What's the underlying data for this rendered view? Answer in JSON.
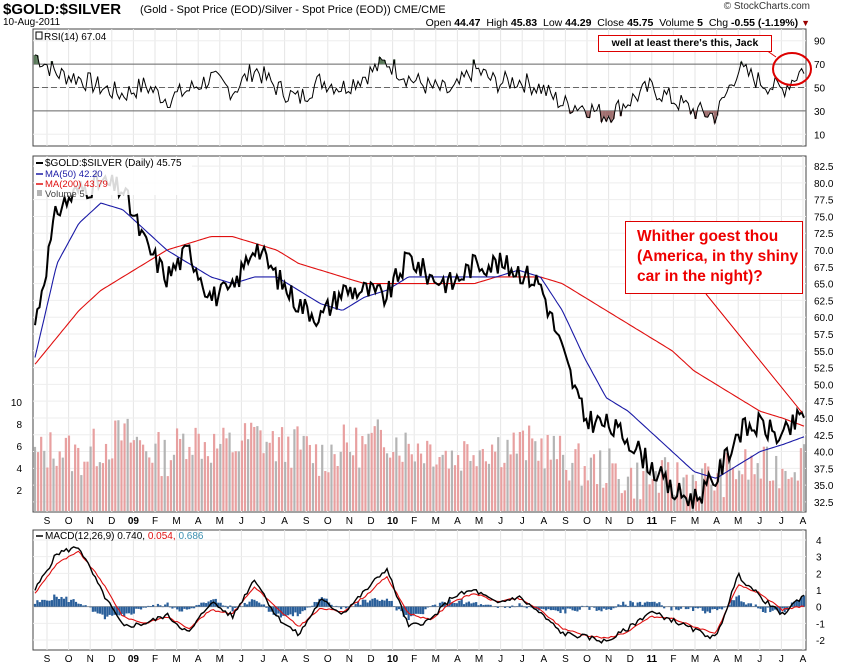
{
  "header": {
    "symbol": "$GOLD:$SILVER",
    "description": "(Gold - Spot Price (EOD)/Silver - Spot Price (EOD)) CME/CME",
    "watermark": "© StockCharts.com",
    "date": "10-Aug-2011",
    "open_label": "Open",
    "open": "44.47",
    "high_label": "High",
    "high": "45.83",
    "low_label": "Low",
    "low": "44.29",
    "close_label": "Close",
    "close": "45.75",
    "volume_label": "Volume",
    "volume": "5",
    "chg_label": "Chg",
    "chg": "-0.55 (-1.19%)"
  },
  "annotations": {
    "rsi_note": "well at least there's this, Jack",
    "price_note_line1": "Whither goest thou",
    "price_note_line2": "(America, in thy shiny",
    "price_note_line3": "car in the night)?"
  },
  "colors": {
    "price": "#000000",
    "ma50": "#1a1aa6",
    "ma200": "#e01010",
    "volume_red": "#e8a0a0",
    "volume_gray": "#b4b4b4",
    "rsi_over": "#5a7a5a",
    "rsi_under": "#a07070",
    "macd_hist": "#2a5f9a",
    "signal": "#e01010",
    "annotation": "#dd0000"
  },
  "chart_data": [
    {
      "type": "line",
      "panel": "rsi",
      "title": "RSI(14) 67.04",
      "legend": "RSI(14)",
      "last": 67.04,
      "ylim": [
        0,
        100
      ],
      "yticks": [
        10,
        30,
        50,
        70,
        90
      ],
      "reference_lines": [
        30,
        50,
        70
      ],
      "x": [
        "2008-09",
        "2008-10",
        "2008-11",
        "2008-12",
        "2009-01",
        "2009-02",
        "2009-03",
        "2009-04",
        "2009-05",
        "2009-06",
        "2009-07",
        "2009-08",
        "2009-09",
        "2009-10",
        "2009-11",
        "2009-12",
        "2010-01",
        "2010-02",
        "2010-03",
        "2010-04",
        "2010-05",
        "2010-06",
        "2010-07",
        "2010-08",
        "2010-09",
        "2010-10",
        "2010-11",
        "2010-12",
        "2011-01",
        "2011-02",
        "2011-03",
        "2011-04",
        "2011-05",
        "2011-06",
        "2011-07",
        "2011-08"
      ],
      "values": [
        78,
        62,
        58,
        50,
        44,
        52,
        40,
        48,
        58,
        47,
        66,
        50,
        40,
        56,
        50,
        60,
        72,
        58,
        50,
        46,
        66,
        54,
        56,
        50,
        36,
        34,
        26,
        38,
        50,
        40,
        30,
        26,
        66,
        55,
        48,
        67
      ]
    },
    {
      "type": "line",
      "panel": "price",
      "title": "$GOLD:$SILVER (Daily) 45.75",
      "series": [
        {
          "name": "$GOLD:$SILVER (Daily) 45.75",
          "values": [
            59,
            76,
            79,
            80,
            79,
            71,
            66,
            70,
            63,
            64,
            71,
            66,
            62,
            60,
            64,
            64,
            63,
            69,
            66,
            65,
            68,
            68,
            67,
            65,
            55,
            45,
            44,
            42,
            38,
            34,
            33,
            36,
            43,
            44,
            42,
            45.75
          ]
        },
        {
          "name": "MA(50) 42.20",
          "values": [
            54,
            68,
            74,
            77,
            76,
            73,
            70,
            68,
            66,
            65,
            66,
            66,
            64,
            62,
            61,
            63,
            64,
            66,
            66,
            66,
            66,
            66,
            67,
            66,
            61,
            54,
            48,
            46,
            43,
            40,
            37,
            36,
            38,
            40,
            41,
            42.2
          ]
        },
        {
          "name": "MA(200) 43.79",
          "values": [
            53,
            57,
            61,
            64,
            66,
            68,
            70,
            71,
            72,
            72,
            71,
            70,
            68,
            67,
            66,
            65,
            65,
            65,
            65,
            65,
            65,
            66,
            66,
            66,
            65,
            63,
            61,
            59,
            57,
            55,
            52,
            50,
            48,
            46,
            45,
            43.79
          ]
        }
      ],
      "x": [
        "2008-09",
        "2008-10",
        "2008-11",
        "2008-12",
        "2009-01",
        "2009-02",
        "2009-03",
        "2009-04",
        "2009-05",
        "2009-06",
        "2009-07",
        "2009-08",
        "2009-09",
        "2009-10",
        "2009-11",
        "2009-12",
        "2010-01",
        "2010-02",
        "2010-03",
        "2010-04",
        "2010-05",
        "2010-06",
        "2010-07",
        "2010-08",
        "2010-09",
        "2010-10",
        "2010-11",
        "2010-12",
        "2011-01",
        "2011-02",
        "2011-03",
        "2011-04",
        "2011-05",
        "2011-06",
        "2011-07",
        "2011-08"
      ],
      "ylim": [
        31,
        84
      ],
      "yticks": [
        32.5,
        35.0,
        37.5,
        40.0,
        42.5,
        45.0,
        47.5,
        50.0,
        52.5,
        55.0,
        57.5,
        60.0,
        62.5,
        65.0,
        67.5,
        70.0,
        72.5,
        75.0,
        77.5,
        80.0,
        82.5
      ]
    },
    {
      "type": "bar",
      "panel": "volume",
      "legend": "Volume 5",
      "ylim": [
        0,
        10
      ],
      "yticks": [
        2,
        4,
        6,
        8,
        10
      ],
      "values": [
        5,
        6,
        5,
        6,
        7,
        6,
        5,
        7,
        6,
        6,
        7,
        6,
        6,
        5,
        6,
        6,
        7,
        6,
        6,
        5,
        6,
        6,
        6,
        6,
        5,
        4,
        4,
        3,
        3,
        3,
        3,
        3,
        4,
        4,
        4,
        5
      ]
    },
    {
      "type": "line",
      "panel": "macd",
      "title": "MACD(12,26,9) 0.740, 0.054, 0.686",
      "legend_macd": "MACD(12,26,9)",
      "legend_macd_value": "0.740,",
      "legend_signal_value": "0.054,",
      "legend_hist_value": "0.686",
      "ylim": [
        -2.6,
        4.6
      ],
      "yticks": [
        -2,
        -1,
        0,
        1,
        2,
        3,
        4
      ],
      "series": [
        {
          "name": "MACD",
          "values": [
            1.0,
            3.2,
            3.6,
            1.0,
            -1.2,
            -1.0,
            -0.5,
            -1.6,
            0.3,
            -0.6,
            1.7,
            -0.6,
            -1.7,
            0.4,
            -0.4,
            0.9,
            2.3,
            -1.2,
            -0.8,
            0.6,
            1.0,
            0.2,
            0.6,
            -0.4,
            -1.6,
            -1.8,
            -2.1,
            -1.3,
            -0.3,
            -0.8,
            -1.4,
            -1.9,
            1.9,
            0.6,
            -0.5,
            0.74
          ]
        },
        {
          "name": "Signal",
          "values": [
            0.8,
            2.6,
            3.3,
            1.6,
            -0.6,
            -1.0,
            -0.6,
            -1.3,
            -0.2,
            -0.4,
            1.2,
            -0.1,
            -1.2,
            -0.1,
            -0.3,
            0.6,
            1.8,
            -0.4,
            -0.8,
            0.3,
            0.8,
            0.3,
            0.5,
            -0.2,
            -1.3,
            -1.7,
            -1.9,
            -1.5,
            -0.6,
            -0.7,
            -1.2,
            -1.6,
            1.3,
            0.8,
            -0.2,
            0.054
          ]
        }
      ]
    }
  ],
  "x_axis": {
    "labels": [
      "S",
      "O",
      "N",
      "D",
      "09",
      "F",
      "M",
      "A",
      "M",
      "J",
      "J",
      "A",
      "S",
      "O",
      "N",
      "D",
      "10",
      "F",
      "M",
      "A",
      "M",
      "J",
      "J",
      "A",
      "S",
      "O",
      "N",
      "D",
      "11",
      "F",
      "M",
      "A",
      "M",
      "J",
      "J",
      "A"
    ]
  }
}
